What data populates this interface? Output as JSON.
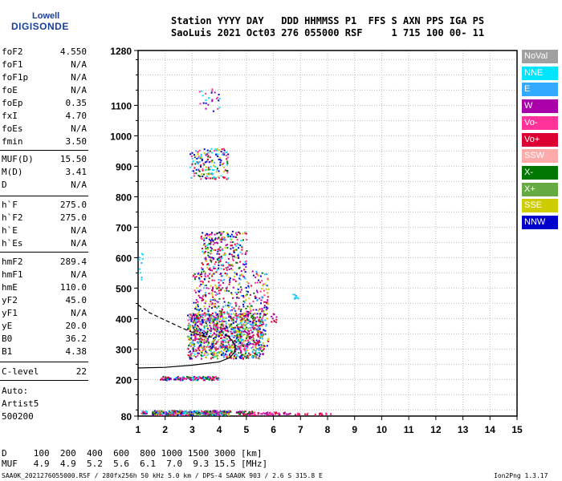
{
  "logo": {
    "line1": "Lowell",
    "line2": "DIGISONDE"
  },
  "header": {
    "line1": "Station YYYY DAY   DDD HHMMSS P1  FFS S AXN PPS IGA PS",
    "line2": "SaoLuis 2021 Oct03 276 055000 RSF     1 715 100 00- 11"
  },
  "params": [
    {
      "name": "foF2",
      "value": "4.550"
    },
    {
      "name": "foF1",
      "value": "N/A"
    },
    {
      "name": "foF1p",
      "value": "N/A"
    },
    {
      "name": "foE",
      "value": "N/A"
    },
    {
      "name": "foEp",
      "value": "0.35"
    },
    {
      "name": "fxI",
      "value": "4.70"
    },
    {
      "name": "foEs",
      "value": "N/A"
    },
    {
      "name": "fmin",
      "value": "3.50"
    },
    {
      "name": "MUF(D)",
      "value": "15.50"
    },
    {
      "name": "M(D)",
      "value": "3.41"
    },
    {
      "name": "D",
      "value": "N/A"
    },
    {
      "name": "h`F",
      "value": "275.0"
    },
    {
      "name": "h`F2",
      "value": "275.0"
    },
    {
      "name": "h`E",
      "value": "N/A"
    },
    {
      "name": "h`Es",
      "value": "N/A"
    },
    {
      "name": "hmF2",
      "value": "289.4"
    },
    {
      "name": "hmF1",
      "value": "N/A"
    },
    {
      "name": "hmE",
      "value": "110.0"
    },
    {
      "name": "yF2",
      "value": "45.0"
    },
    {
      "name": "yF1",
      "value": "N/A"
    },
    {
      "name": "yE",
      "value": "20.0"
    },
    {
      "name": "B0",
      "value": "36.2"
    },
    {
      "name": "B1",
      "value": "4.38"
    },
    {
      "name": "C-level",
      "value": "22"
    }
  ],
  "auto": {
    "line1": "Auto:",
    "line2": "Artist5",
    "line3": "500200"
  },
  "legend": [
    {
      "label": "NoVal",
      "color": "#a0a0a0"
    },
    {
      "label": "NNE",
      "color": "#00e5ff"
    },
    {
      "label": "E",
      "color": "#33aaff"
    },
    {
      "label": "W",
      "color": "#aa00aa"
    },
    {
      "label": "Vo-",
      "color": "#ff3399"
    },
    {
      "label": "Vo+",
      "color": "#dd0033"
    },
    {
      "label": "SSW",
      "color": "#ffaaaa"
    },
    {
      "label": "X-",
      "color": "#007700"
    },
    {
      "label": "X+",
      "color": "#66aa44"
    },
    {
      "label": "SSE",
      "color": "#cccc00"
    },
    {
      "label": "NNW",
      "color": "#0000cc"
    }
  ],
  "dmuf": {
    "d_line": "D     100  200  400  600  800 1000 1500 3000 [km]",
    "muf_line": "MUF   4.9  4.9  5.2  5.6  6.1  7.0  9.3 15.5 [MHz]"
  },
  "footer": {
    "left": "SAA0K_2021276055000.RSF / 280fx256h 50 kHz 5.0 km / DPS-4 SAA0K 903 / 2.6 S 315.8 E",
    "right": "Ion2Png 1.3.17"
  },
  "chart_data": {
    "type": "scatter",
    "xlim": [
      1,
      15
    ],
    "ylim": [
      80,
      1280
    ],
    "x_ticks": [
      1,
      2,
      3,
      4,
      5,
      6,
      7,
      8,
      9,
      10,
      11,
      12,
      13,
      14,
      15
    ],
    "y_ticks": [
      80,
      200,
      300,
      400,
      500,
      600,
      700,
      800,
      900,
      1000,
      1100,
      1280
    ],
    "grid": true,
    "clusters": [
      {
        "x": [
          1.1,
          1.3
        ],
        "y": [
          88,
          100
        ],
        "colors": [
          "#00e5ff",
          "#ff3399",
          "#aa00aa",
          "#33aaff",
          "#007700"
        ]
      },
      {
        "x": [
          1.5,
          4.4
        ],
        "y": [
          85,
          100
        ],
        "colors": [
          "#aa00aa",
          "#ff3399",
          "#007700",
          "#cccc00",
          "#0000cc",
          "#33aaff",
          "#00e5ff",
          "#dd0033",
          "#66aa44"
        ]
      },
      {
        "x": [
          4.6,
          5.3
        ],
        "y": [
          85,
          98
        ],
        "colors": [
          "#aa00aa",
          "#dd0033",
          "#007700",
          "#ff3399"
        ]
      },
      {
        "x": [
          5.4,
          6.6
        ],
        "y": [
          86,
          95
        ],
        "colors": [
          "#ff3399",
          "#dd0033",
          "#aa00aa"
        ]
      },
      {
        "x": [
          6.7,
          8.1
        ],
        "y": [
          86,
          92
        ],
        "colors": [
          "#ff3399",
          "#dd0033"
        ]
      },
      {
        "x": [
          1.0,
          1.15
        ],
        "y": [
          520,
          620
        ],
        "colors": [
          "#00e5ff",
          "#33aaff"
        ]
      },
      {
        "x": [
          1.8,
          4.0
        ],
        "y": [
          200,
          212
        ],
        "colors": [
          "#aa00aa",
          "#ff3399",
          "#dd0033",
          "#00e5ff",
          "#007700",
          "#0000cc"
        ]
      },
      {
        "x": [
          2.8,
          5.6
        ],
        "y": [
          270,
          420
        ],
        "colors": [
          "#aa00aa",
          "#ff3399",
          "#dd0033",
          "#007700",
          "#0000cc",
          "#33aaff",
          "#00e5ff",
          "#66aa44",
          "#cccc00"
        ]
      },
      {
        "x": [
          3.0,
          5.8
        ],
        "y": [
          300,
          560
        ],
        "colors": [
          "#aa00aa",
          "#dd0033",
          "#0000cc",
          "#007700",
          "#ff3399",
          "#33aaff",
          "#cccc00"
        ]
      },
      {
        "x": [
          3.3,
          5.0
        ],
        "y": [
          560,
          690
        ],
        "colors": [
          "#cccc00",
          "#007700",
          "#ff3399",
          "#dd0033",
          "#0000cc",
          "#00e5ff",
          "#aa00aa"
        ]
      },
      {
        "x": [
          2.9,
          4.3
        ],
        "y": [
          860,
          960
        ],
        "colors": [
          "#007700",
          "#cccc00",
          "#dd0033",
          "#00e5ff",
          "#ff3399",
          "#0000cc",
          "#33aaff"
        ]
      },
      {
        "x": [
          3.2,
          4.0
        ],
        "y": [
          1080,
          1160
        ],
        "colors": [
          "#aa00aa",
          "#ff3399",
          "#00e5ff",
          "#0000cc"
        ]
      },
      {
        "x": [
          6.7,
          6.9
        ],
        "y": [
          462,
          482
        ],
        "colors": [
          "#00e5ff",
          "#33aaff"
        ]
      },
      {
        "x": [
          5.9,
          6.1
        ],
        "y": [
          380,
          420
        ],
        "colors": [
          "#aa00aa",
          "#dd0033"
        ]
      }
    ],
    "profile_solid": {
      "x": [
        1.0,
        2.0,
        3.0,
        4.0,
        4.4,
        4.55,
        4.6,
        4.5,
        4.35,
        4.2
      ],
      "y": [
        238,
        240,
        247,
        258,
        272,
        289,
        305,
        325,
        340,
        348
      ]
    },
    "profile_dashed": {
      "x": [
        1.0,
        1.4,
        2.0,
        2.6,
        3.0,
        3.3,
        3.6,
        3.9
      ],
      "y": [
        445,
        420,
        395,
        370,
        355,
        345,
        340,
        338
      ]
    }
  }
}
